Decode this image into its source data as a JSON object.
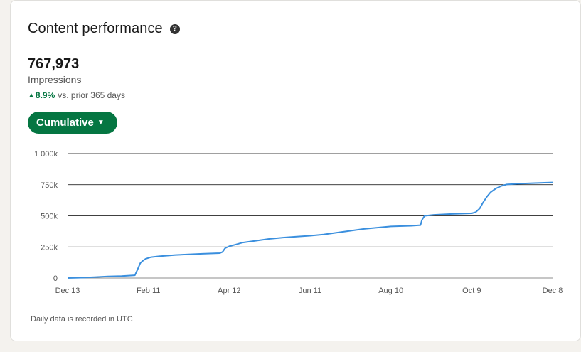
{
  "card": {
    "title": "Content performance",
    "help_icon": "?",
    "metric_value": "767,973",
    "metric_label": "Impressions",
    "delta_arrow": "▲",
    "delta_pct": "8.9%",
    "delta_text": "vs. prior 365 days",
    "toggle_label": "Cumulative",
    "toggle_caret": "▼",
    "footnote": "Daily data is recorded in UTC"
  },
  "colors": {
    "line": "#3a8fde",
    "accent": "#057642",
    "grid": "#000000"
  },
  "chart_data": {
    "type": "line",
    "title": "",
    "xlabel": "",
    "ylabel": "",
    "ylim": [
      0,
      1000000
    ],
    "y_ticks": [
      0,
      250000,
      500000,
      750000,
      1000000
    ],
    "y_tick_labels": [
      "0",
      "250k",
      "500k",
      "750k",
      "1 000k"
    ],
    "x_tick_labels": [
      "Dec 13",
      "Feb 11",
      "Apr 12",
      "Jun 11",
      "Aug 10",
      "Oct 9",
      "Dec 8"
    ],
    "x_tick_days": [
      0,
      60,
      120,
      180,
      240,
      300,
      360
    ],
    "series": [
      {
        "x_days": [
          0,
          10,
          20,
          30,
          40,
          50,
          52,
          54,
          56,
          58,
          62,
          68,
          80,
          100,
          113,
          115,
          117,
          120,
          125,
          130,
          140,
          150,
          160,
          170,
          180,
          190,
          200,
          210,
          220,
          235,
          240,
          255,
          262,
          263,
          265,
          272,
          285,
          300,
          303,
          306,
          308,
          311,
          314,
          318,
          322,
          326,
          335,
          345,
          360
        ],
        "values": [
          0,
          3000,
          7000,
          13000,
          16000,
          22000,
          70000,
          120000,
          140000,
          155000,
          168000,
          175000,
          185000,
          195000,
          200000,
          210000,
          240000,
          255000,
          270000,
          285000,
          300000,
          315000,
          325000,
          333000,
          340000,
          350000,
          365000,
          380000,
          395000,
          410000,
          415000,
          420000,
          425000,
          465000,
          500000,
          508000,
          515000,
          520000,
          530000,
          560000,
          600000,
          650000,
          690000,
          720000,
          740000,
          752000,
          758000,
          762000,
          767973
        ]
      }
    ]
  }
}
